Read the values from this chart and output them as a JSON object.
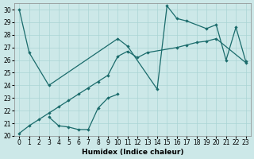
{
  "xlabel": "Humidex (Indice chaleur)",
  "bg_color": "#cce8e8",
  "grid_color": "#aad4d4",
  "line_color": "#1a6b6b",
  "xlim": [
    -0.5,
    23.5
  ],
  "ylim": [
    20,
    30.5
  ],
  "yticks": [
    20,
    21,
    22,
    23,
    24,
    25,
    26,
    27,
    28,
    29,
    30
  ],
  "xticks": [
    0,
    1,
    2,
    3,
    4,
    5,
    6,
    7,
    8,
    9,
    10,
    11,
    12,
    13,
    14,
    15,
    16,
    17,
    18,
    19,
    20,
    21,
    22,
    23
  ],
  "line1_x": [
    0,
    1,
    3,
    10,
    11,
    14,
    15,
    16,
    17,
    19,
    20,
    21,
    22,
    23
  ],
  "line1_y": [
    30,
    26.6,
    24.0,
    27.7,
    27.1,
    23.7,
    30.3,
    29.3,
    29.1,
    28.5,
    28.8,
    26.0,
    28.6,
    25.9
  ],
  "line2_x": [
    0,
    1,
    2,
    3,
    4,
    5,
    6,
    7,
    8,
    9,
    10,
    11,
    12,
    13,
    16,
    17,
    18,
    19,
    20,
    23
  ],
  "line2_y": [
    20.2,
    20.8,
    21.3,
    21.8,
    22.3,
    22.8,
    23.3,
    23.8,
    24.3,
    24.8,
    26.3,
    26.7,
    26.2,
    26.6,
    27.0,
    27.2,
    27.4,
    27.5,
    27.7,
    25.8
  ],
  "line3_x": [
    3,
    4,
    5,
    6,
    7,
    8,
    9,
    10
  ],
  "line3_y": [
    21.5,
    20.8,
    20.7,
    20.5,
    20.5,
    22.2,
    23.0,
    23.3
  ]
}
